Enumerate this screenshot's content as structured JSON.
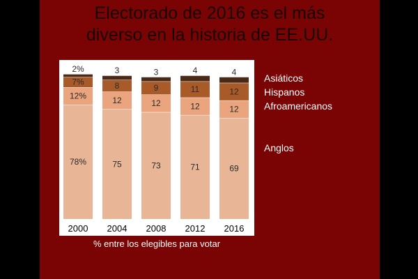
{
  "slide": {
    "title_line1": "Electorado de 2016 es el más",
    "title_line2": "diverso en la historia de EE.UU.",
    "caption": "% entre los elegibles para votar"
  },
  "chart_data": {
    "type": "bar",
    "stacked": true,
    "categories": [
      "2000",
      "2004",
      "2008",
      "2012",
      "2016"
    ],
    "ylim": [
      0,
      100
    ],
    "legend_position": "right",
    "series": [
      {
        "name": "Anglos",
        "values": [
          78,
          75,
          73,
          71,
          69
        ],
        "labels": [
          "78%",
          "75",
          "73",
          "71",
          "69"
        ],
        "color": "#e8b596"
      },
      {
        "name": "Afroamericanos",
        "values": [
          12,
          12,
          12,
          12,
          12
        ],
        "labels": [
          "12%",
          "12",
          "12",
          "12",
          "12"
        ],
        "color": "#eaa57f"
      },
      {
        "name": "Hispanos",
        "values": [
          7,
          8,
          9,
          11,
          12
        ],
        "labels": [
          "7%",
          "8",
          "9",
          "11",
          "12"
        ],
        "color": "#a85a28"
      },
      {
        "name": "Asiáticos",
        "values": [
          2,
          3,
          3,
          4,
          4
        ],
        "labels": [
          "2%",
          "3",
          "3",
          "4",
          "4"
        ],
        "color": "#4a2a16"
      }
    ]
  }
}
